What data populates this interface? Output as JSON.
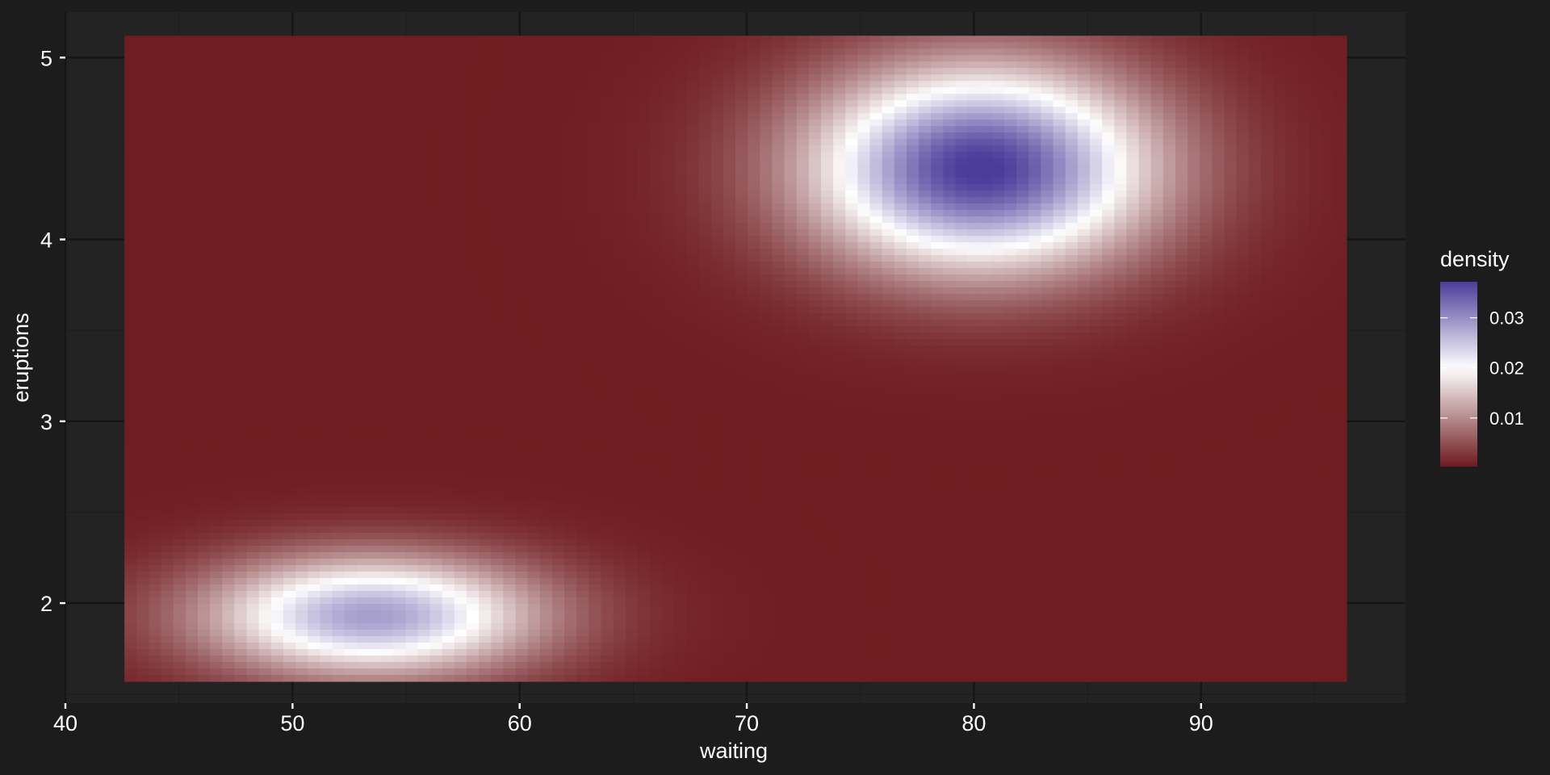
{
  "chart_data": {
    "type": "heatmap",
    "title": "",
    "xlabel": "waiting",
    "ylabel": "eruptions",
    "xlim": [
      40,
      99
    ],
    "ylim": [
      1.45,
      5.25
    ],
    "x_ticks": [
      40,
      50,
      60,
      70,
      80,
      90
    ],
    "y_ticks": [
      2,
      3,
      4,
      5
    ],
    "x_tick_labels": [
      "40",
      "50",
      "60",
      "70",
      "80",
      "90"
    ],
    "y_tick_labels": [
      "2",
      "3",
      "4",
      "5"
    ],
    "data_extent": {
      "x": [
        42.6,
        96.4
      ],
      "y": [
        1.57,
        5.12
      ]
    },
    "grid": {
      "nx": 100,
      "ny": 100
    },
    "density_peaks": [
      {
        "waiting": 80.3,
        "eruptions": 4.39,
        "density": 0.037
      },
      {
        "waiting": 53.5,
        "eruptions": 1.93,
        "density": 0.028
      }
    ],
    "grid_lines": true,
    "legend": {
      "title": "density",
      "position": "right",
      "range": [
        0.0003,
        0.0372
      ],
      "ticks": [
        0.01,
        0.02,
        0.03
      ],
      "tick_labels": [
        "0.01",
        "0.02",
        "0.03"
      ],
      "colors": {
        "low": "#6e1a1e",
        "mid": "#ffffff",
        "high": "#4b3c9a",
        "midpoint": 0.02
      }
    },
    "theme": {
      "background": "#1c1c1c",
      "panel": "#232323",
      "grid_major": "#151515",
      "grid_minor": "#1e1e1e",
      "text": "#ffffff"
    }
  }
}
